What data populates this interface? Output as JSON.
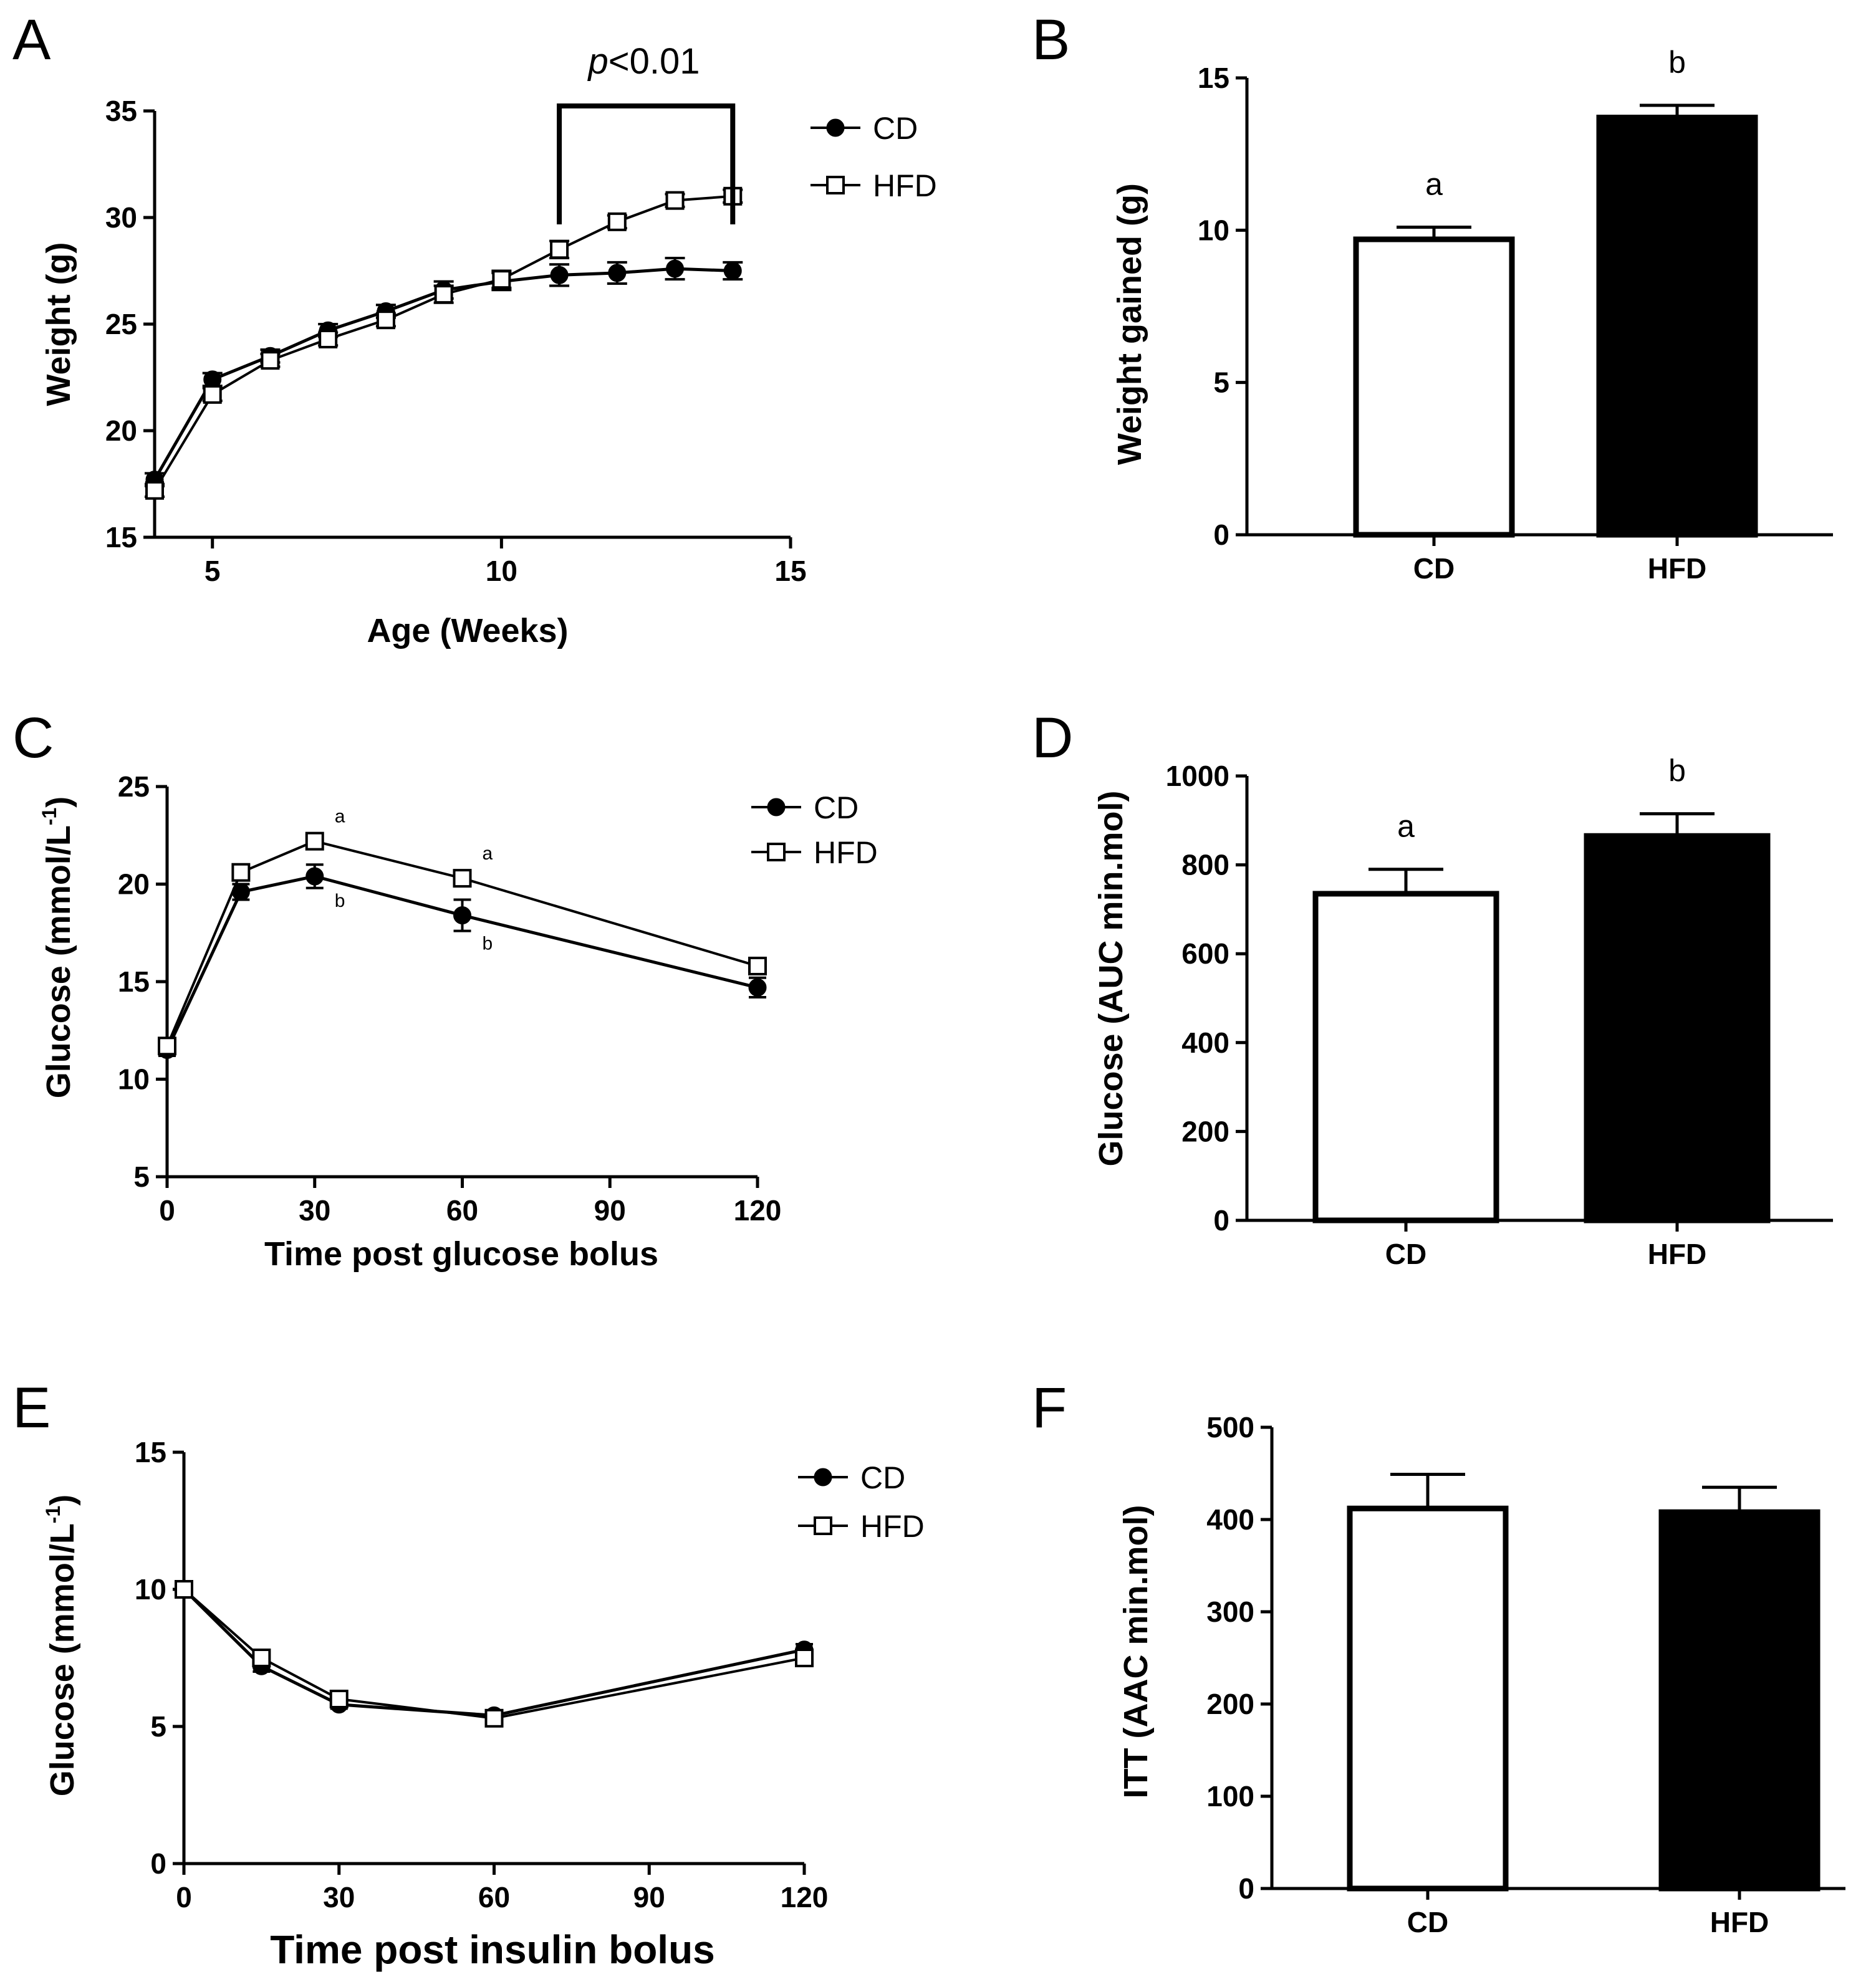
{
  "colors": {
    "ink": "#000000",
    "background": "#ffffff",
    "cd_fill": "#000000",
    "hfd_fill": "#ffffff"
  },
  "chart_data": [
    {
      "panel": "A",
      "type": "line",
      "xlabel": "Age (Weeks)",
      "ylabel": "Weight (g)",
      "xlim": [
        4,
        15
      ],
      "ylim": [
        15,
        35
      ],
      "xticks": [
        5,
        10,
        15
      ],
      "yticks": [
        15,
        20,
        25,
        30,
        35
      ],
      "legend": "top-right",
      "x": [
        4,
        5,
        6,
        7,
        8,
        9,
        10,
        11,
        12,
        13,
        14
      ],
      "series": [
        {
          "name": "CD",
          "marker": "filled-circle",
          "values": [
            17.7,
            22.4,
            23.5,
            24.7,
            25.6,
            26.6,
            27.0,
            27.3,
            27.4,
            27.6,
            27.5
          ],
          "errors": [
            0.3,
            0.3,
            0.3,
            0.3,
            0.3,
            0.4,
            0.4,
            0.5,
            0.5,
            0.5,
            0.4
          ]
        },
        {
          "name": "HFD",
          "marker": "open-square",
          "values": [
            17.2,
            21.7,
            23.3,
            24.3,
            25.2,
            26.4,
            27.1,
            28.5,
            29.8,
            30.8,
            31.0
          ],
          "errors": [
            0.3,
            0.3,
            0.3,
            0.3,
            0.3,
            0.4,
            0.4,
            0.4,
            0.3,
            0.3,
            0.3
          ]
        }
      ],
      "annotations": [
        {
          "kind": "bracket",
          "x_from": 11,
          "x_to": 14,
          "label_italic": "p",
          "label_rest": "<0.01"
        }
      ]
    },
    {
      "panel": "B",
      "type": "bar",
      "xlabel": "",
      "ylabel": "Weight gained (g)",
      "ylim": [
        0,
        15
      ],
      "yticks": [
        0,
        5,
        10,
        15
      ],
      "categories": [
        "CD",
        "HFD"
      ],
      "values": [
        9.7,
        13.7
      ],
      "errors": [
        0.4,
        0.4
      ],
      "letters": [
        "a",
        "b"
      ]
    },
    {
      "panel": "C",
      "type": "line",
      "xlabel": "Time post glucose bolus",
      "ylabel": "Glucose (mmol/L",
      "ylabel_sup": "-1",
      "ylabel_end": ")",
      "xlim": [
        0,
        120
      ],
      "ylim": [
        5,
        25
      ],
      "xticks": [
        0,
        30,
        60,
        90,
        120
      ],
      "yticks": [
        5,
        10,
        15,
        20,
        25
      ],
      "legend": "top-right",
      "x": [
        0,
        15,
        30,
        60,
        120
      ],
      "series": [
        {
          "name": "CD",
          "marker": "filled-circle",
          "values": [
            11.5,
            19.6,
            20.4,
            18.4,
            14.7
          ],
          "errors": [
            0.3,
            0.4,
            0.6,
            0.8,
            0.5
          ]
        },
        {
          "name": "HFD",
          "marker": "open-square",
          "values": [
            11.7,
            20.6,
            22.2,
            20.3,
            15.8
          ],
          "errors": [
            0.3,
            0.3,
            0.3,
            0.4,
            0.3
          ]
        }
      ],
      "point_labels": [
        {
          "series": "HFD",
          "x": 30,
          "text": "a"
        },
        {
          "series": "HFD",
          "x": 60,
          "text": "a"
        },
        {
          "series": "CD",
          "x": 30,
          "text": "b"
        },
        {
          "series": "CD",
          "x": 60,
          "text": "b"
        }
      ]
    },
    {
      "panel": "D",
      "type": "bar",
      "xlabel": "",
      "ylabel": "Glucose (AUC min.mol)",
      "ylim": [
        0,
        1000
      ],
      "yticks": [
        0,
        200,
        400,
        600,
        800,
        1000
      ],
      "categories": [
        "CD",
        "HFD"
      ],
      "values": [
        735,
        865
      ],
      "errors": [
        55,
        50
      ],
      "letters": [
        "a",
        "b"
      ]
    },
    {
      "panel": "E",
      "type": "line",
      "xlabel": "Time post insulin bolus",
      "ylabel": "Glucose (mmol/L",
      "ylabel_sup": "-1",
      "ylabel_end": ")",
      "xlim": [
        0,
        120
      ],
      "ylim": [
        0,
        15
      ],
      "xticks": [
        0,
        30,
        60,
        90,
        120
      ],
      "yticks": [
        0,
        5,
        10,
        15
      ],
      "legend": "top-right",
      "x": [
        0,
        15,
        30,
        60,
        120
      ],
      "series": [
        {
          "name": "CD",
          "marker": "filled-circle",
          "values": [
            10.0,
            7.2,
            5.8,
            5.4,
            7.8
          ],
          "errors": [
            0.2,
            0.2,
            0.15,
            0.15,
            0.2
          ]
        },
        {
          "name": "HFD",
          "marker": "open-square",
          "values": [
            10.0,
            7.5,
            6.0,
            5.3,
            7.5
          ],
          "errors": [
            0.2,
            0.2,
            0.15,
            0.15,
            0.2
          ]
        }
      ]
    },
    {
      "panel": "F",
      "type": "bar",
      "xlabel": "",
      "ylabel": "ITT (AAC min.mol)",
      "ylim": [
        0,
        500
      ],
      "yticks": [
        0,
        100,
        200,
        300,
        400,
        500
      ],
      "categories": [
        "CD",
        "HFD"
      ],
      "values": [
        412,
        408
      ],
      "errors": [
        37,
        27
      ]
    }
  ]
}
